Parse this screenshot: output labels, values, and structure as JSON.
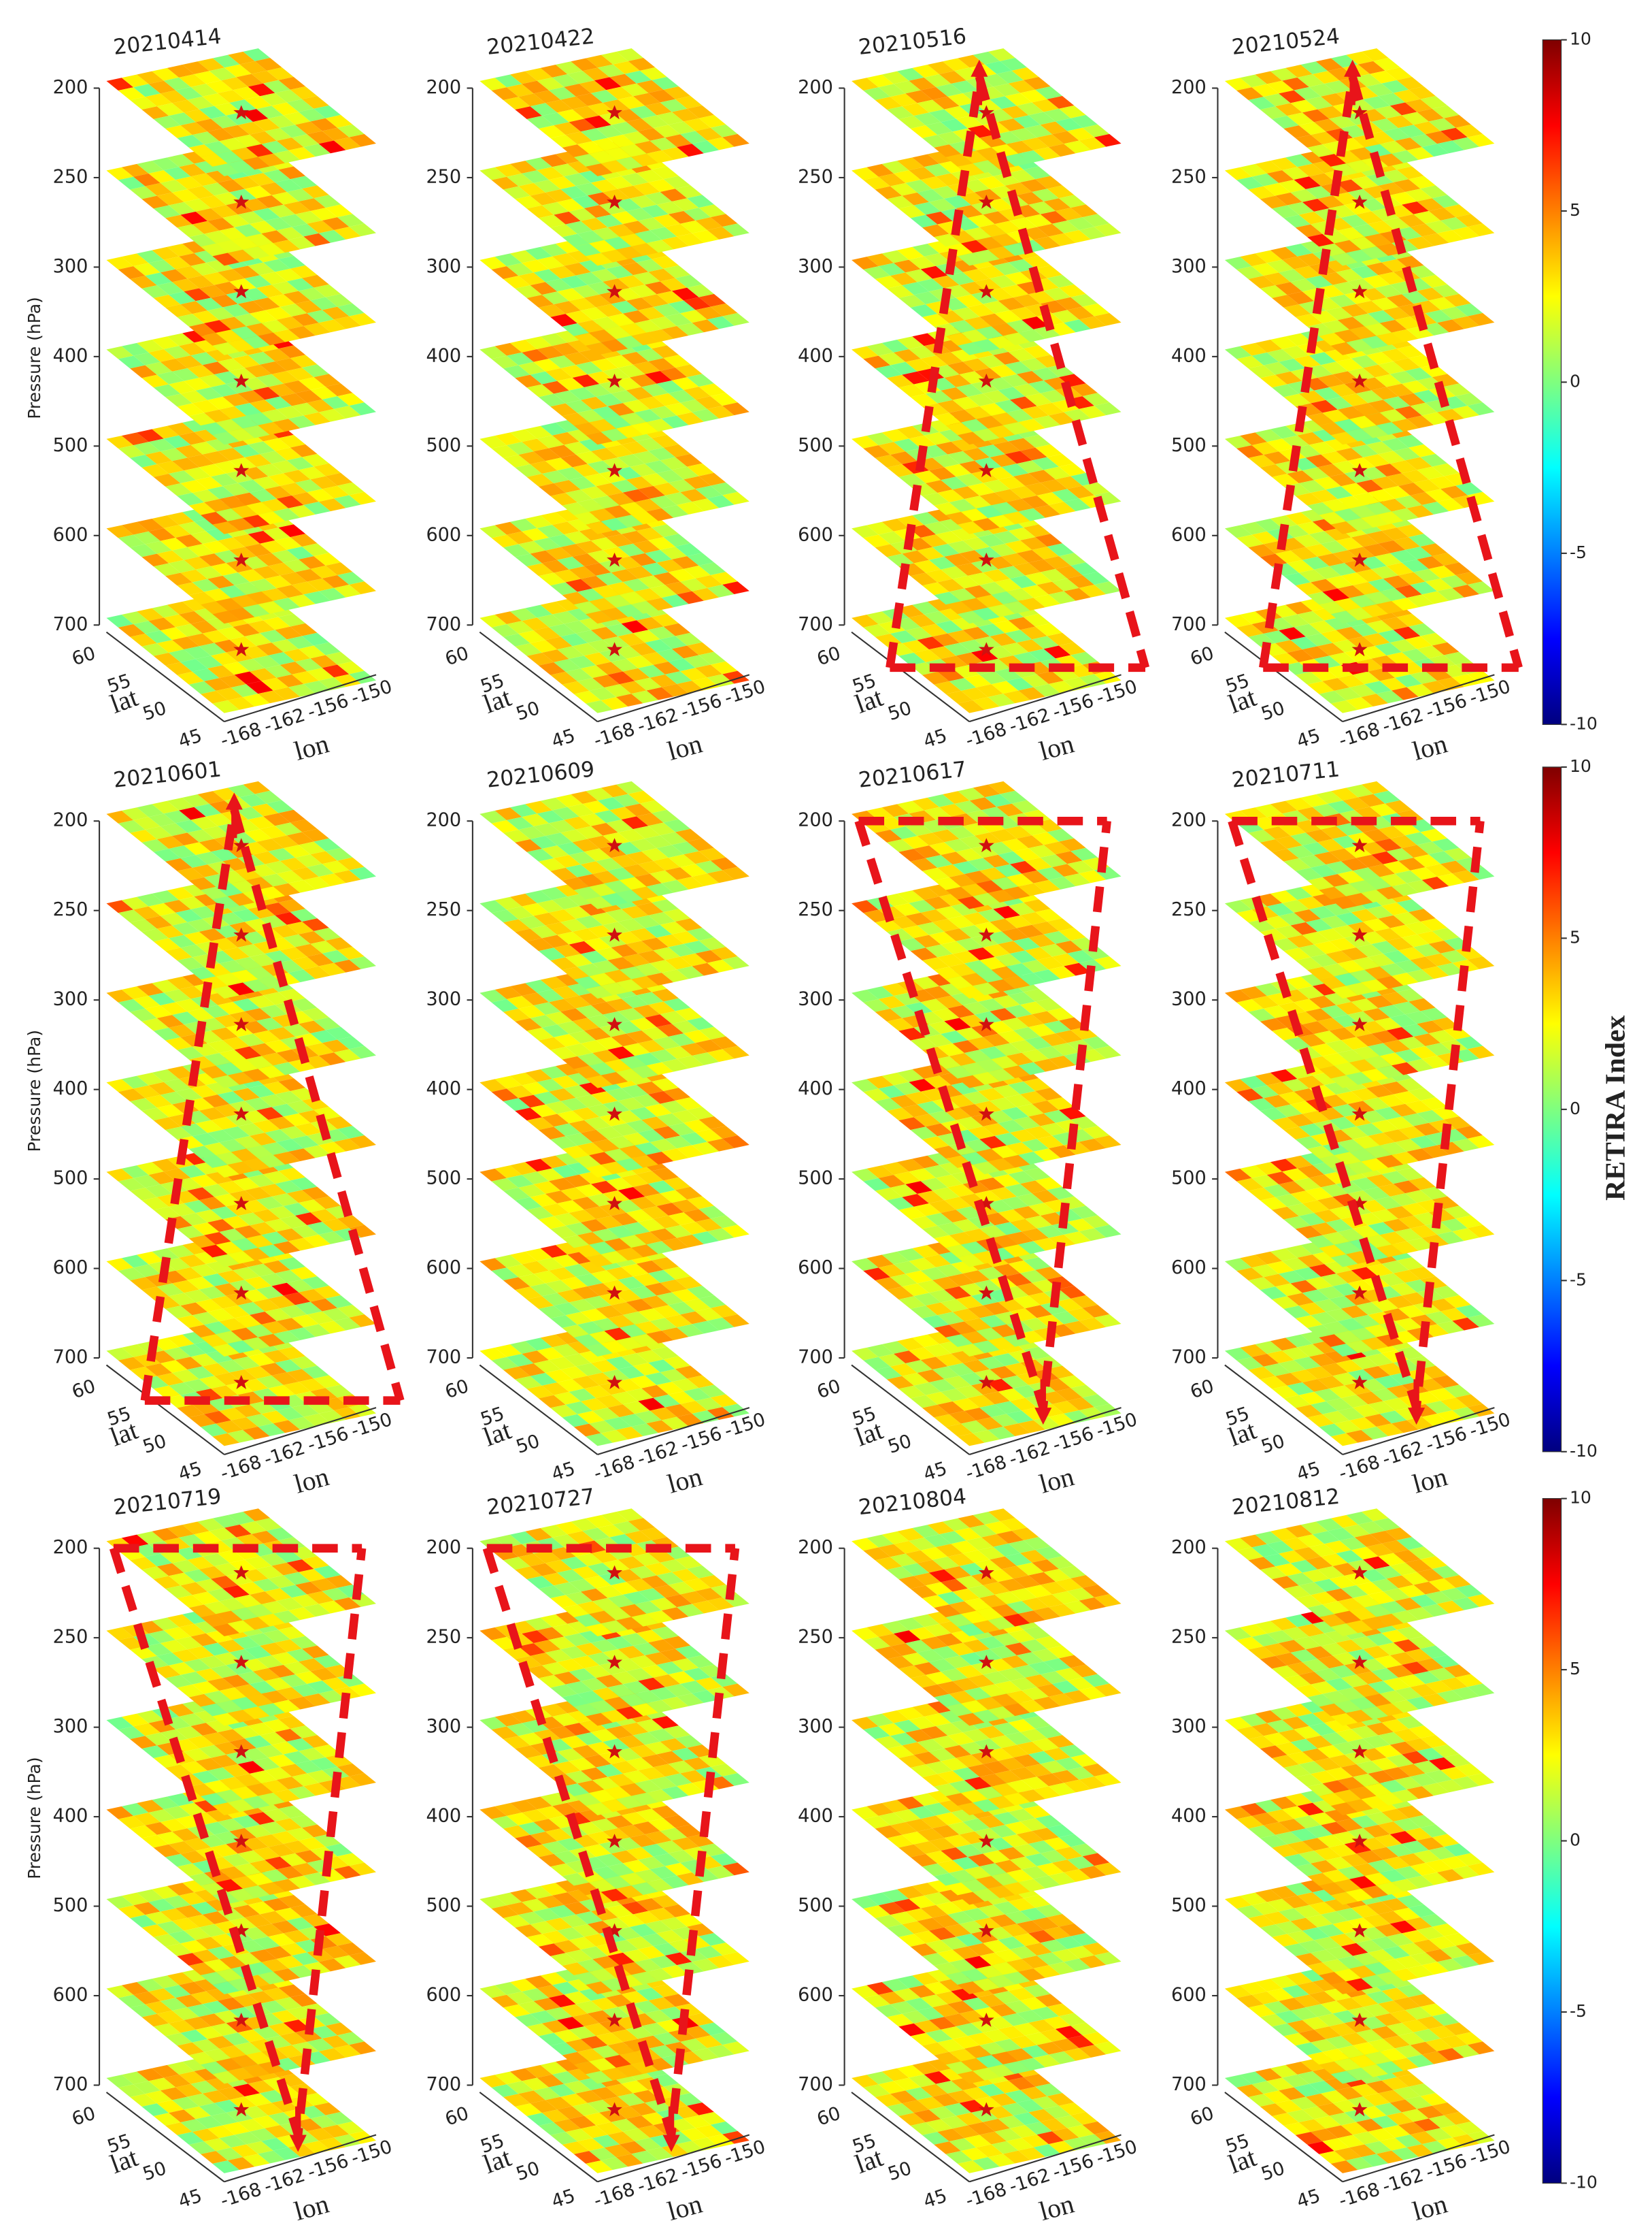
{
  "chart_data": [
    {
      "type": "heatmap-stack",
      "title": "20210414",
      "levels": [
        200,
        250,
        300,
        400,
        500,
        600,
        700
      ],
      "y_label": "Pressure (hPa)",
      "lat_ticks": [
        60,
        55,
        50,
        45
      ],
      "lon_ticks": [
        -168,
        -162,
        -156,
        -150
      ],
      "lat_label": "lat",
      "lon_label": "lon"
    },
    {
      "type": "heatmap-stack",
      "title": "20210422",
      "levels": [
        200,
        250,
        300,
        400,
        500,
        600,
        700
      ],
      "lat_ticks": [
        60,
        55,
        50,
        45
      ],
      "lon_ticks": [
        -168,
        -162,
        -156,
        -150
      ],
      "lat_label": "lat",
      "lon_label": "lon"
    },
    {
      "type": "heatmap-stack",
      "title": "20210516",
      "levels": [
        200,
        250,
        300,
        400,
        500,
        600,
        700
      ],
      "lat_ticks": [
        60,
        55,
        50,
        45
      ],
      "lon_ticks": [
        -168,
        -162,
        -156,
        -150
      ],
      "lat_label": "lat",
      "lon_label": "lon",
      "highlight": "up"
    },
    {
      "type": "heatmap-stack",
      "title": "20210524",
      "levels": [
        200,
        250,
        300,
        400,
        500,
        600,
        700
      ],
      "lat_ticks": [
        60,
        55,
        50,
        45
      ],
      "lon_ticks": [
        -168,
        -162,
        -156,
        -150
      ],
      "lat_label": "lat",
      "lon_label": "lon",
      "highlight": "up"
    },
    {
      "type": "heatmap-stack",
      "title": "20210601",
      "levels": [
        200,
        250,
        300,
        400,
        500,
        600,
        700
      ],
      "y_label": "Pressure (hPa)",
      "lat_ticks": [
        60,
        55,
        50,
        45
      ],
      "lon_ticks": [
        -168,
        -162,
        -156,
        -150
      ],
      "lat_label": "lat",
      "lon_label": "lon",
      "highlight": "up"
    },
    {
      "type": "heatmap-stack",
      "title": "20210609",
      "levels": [
        200,
        250,
        300,
        400,
        500,
        600,
        700
      ],
      "lat_ticks": [
        60,
        55,
        50,
        45
      ],
      "lon_ticks": [
        -168,
        -162,
        -156,
        -150
      ],
      "lat_label": "lat",
      "lon_label": "lon"
    },
    {
      "type": "heatmap-stack",
      "title": "20210617",
      "levels": [
        200,
        250,
        300,
        400,
        500,
        600,
        700
      ],
      "lat_ticks": [
        60,
        55,
        50,
        45
      ],
      "lon_ticks": [
        -168,
        -162,
        -156,
        -150
      ],
      "lat_label": "lat",
      "lon_label": "lon",
      "highlight": "down"
    },
    {
      "type": "heatmap-stack",
      "title": "20210711",
      "levels": [
        200,
        250,
        300,
        400,
        500,
        600,
        700
      ],
      "lat_ticks": [
        60,
        55,
        50,
        45
      ],
      "lon_ticks": [
        -168,
        -162,
        -156,
        -150
      ],
      "lat_label": "lat",
      "lon_label": "lon",
      "highlight": "down"
    },
    {
      "type": "heatmap-stack",
      "title": "20210719",
      "levels": [
        200,
        250,
        300,
        400,
        500,
        600,
        700
      ],
      "y_label": "Pressure (hPa)",
      "lat_ticks": [
        60,
        55,
        50,
        45
      ],
      "lon_ticks": [
        -168,
        -162,
        -156,
        -150
      ],
      "lat_label": "lat",
      "lon_label": "lon",
      "highlight": "down"
    },
    {
      "type": "heatmap-stack",
      "title": "20210727",
      "levels": [
        200,
        250,
        300,
        400,
        500,
        600,
        700
      ],
      "lat_ticks": [
        60,
        55,
        50,
        45
      ],
      "lon_ticks": [
        -168,
        -162,
        -156,
        -150
      ],
      "lat_label": "lat",
      "lon_label": "lon",
      "highlight": "down"
    },
    {
      "type": "heatmap-stack",
      "title": "20210804",
      "levels": [
        200,
        250,
        300,
        400,
        500,
        600,
        700
      ],
      "lat_ticks": [
        60,
        55,
        50,
        45
      ],
      "lon_ticks": [
        -168,
        -162,
        -156,
        -150
      ],
      "lat_label": "lat",
      "lon_label": "lon"
    },
    {
      "type": "heatmap-stack",
      "title": "20210812",
      "levels": [
        200,
        250,
        300,
        400,
        500,
        600,
        700
      ],
      "lat_ticks": [
        60,
        55,
        50,
        45
      ],
      "lon_ticks": [
        -168,
        -162,
        -156,
        -150
      ],
      "lat_label": "lat",
      "lon_label": "lon"
    }
  ],
  "colorbar": {
    "label": "RETIRA Index",
    "colormap": "jet",
    "clim": [
      -10,
      10
    ],
    "ticks": [
      10,
      5,
      0,
      -5,
      -10
    ]
  }
}
